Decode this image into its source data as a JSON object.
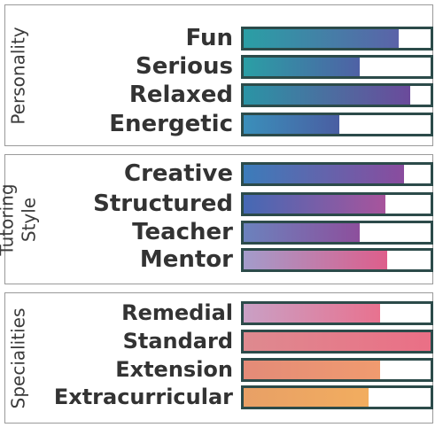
{
  "sections": [
    {
      "title": "Personality",
      "rows": [
        {
          "label": "Fun",
          "level": 0.83,
          "color_from": "#2a9fa5",
          "color_to": "#5b63a8"
        },
        {
          "label": "Serious",
          "level": 0.62,
          "color_from": "#2a9fa5",
          "color_to": "#4f61a5"
        },
        {
          "label": "Relaxed",
          "level": 0.89,
          "color_from": "#2a94a5",
          "color_to": "#6b4a9b"
        },
        {
          "label": "Energetic",
          "level": 0.51,
          "color_from": "#3a8fba",
          "color_to": "#4a5ea2"
        }
      ]
    },
    {
      "title": "Tutoring\nStyle",
      "rows": [
        {
          "label": "Creative",
          "level": 0.86,
          "color_from": "#3b7cba",
          "color_to": "#8a4c9e"
        },
        {
          "label": "Structured",
          "level": 0.76,
          "color_from": "#4469b4",
          "color_to": "#a8549c"
        },
        {
          "label": "Teacher",
          "level": 0.62,
          "color_from": "#6b82bd",
          "color_to": "#8d4f9c"
        },
        {
          "label": "Mentor",
          "level": 0.77,
          "color_from": "#a39ccb",
          "color_to": "#de5e8b"
        }
      ]
    },
    {
      "title": "Specialities",
      "rows": [
        {
          "label": "Remedial",
          "level": 0.73,
          "color_from": "#c9a0c5",
          "color_to": "#e8728f"
        },
        {
          "label": "Standard",
          "level": 1.0,
          "color_from": "#de8a8f",
          "color_to": "#ea6f86"
        },
        {
          "label": "Extension",
          "level": 0.73,
          "color_from": "#e38b78",
          "color_to": "#f09b6f"
        },
        {
          "label": "Extracurricular",
          "level": 0.67,
          "color_from": "#e8a066",
          "color_to": "#f2ad5f"
        }
      ]
    }
  ]
}
